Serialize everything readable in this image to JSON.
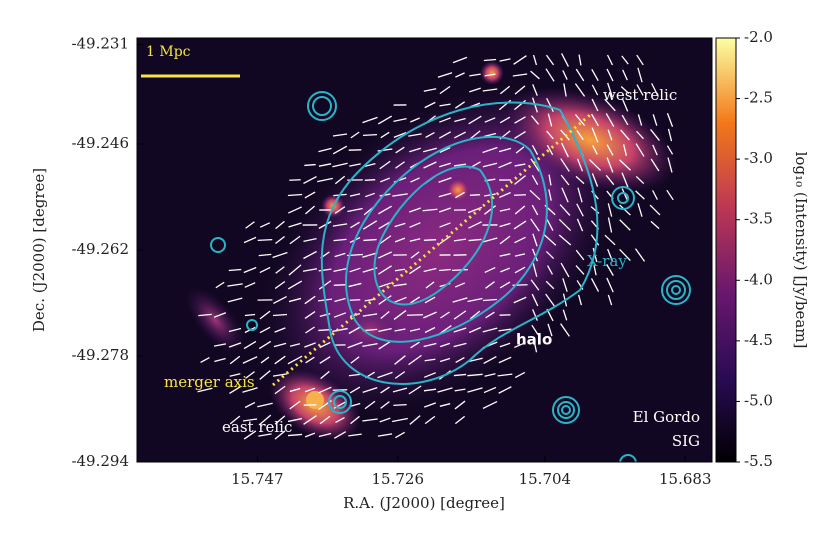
{
  "chart_data": {
    "type": "image",
    "xlabel": "R.A. (J2000) [degree]",
    "ylabel": "Dec. (J2000) [degree]",
    "xlim": [
      15.765,
      15.679
    ],
    "xticks": [
      15.747,
      15.726,
      15.704,
      15.683
    ],
    "ylim": [
      -49.294,
      -49.23
    ],
    "yticks": [
      -49.294,
      -49.278,
      -49.262,
      -49.246,
      -49.231
    ],
    "colorbar_label": "log₁₀ (Intensity) [Jy/beam]",
    "clim": [
      -5.5,
      -2.0
    ],
    "cticks": [
      {
        "value": -5.5,
        "label": "-5.5"
      },
      {
        "value": -5.0,
        "label": "-5.0"
      },
      -4.5,
      {
        "value": -4.0,
        "label": "-4.0"
      },
      -3.5,
      {
        "value": -3.0,
        "label": "-3.0"
      },
      -2.5,
      {
        "value": -2.0,
        "label": "-2.0"
      }
    ],
    "annotations": {
      "scale_bar": "1 Mpc",
      "west_relic": "west relic",
      "xray": "X-ray",
      "halo": "halo",
      "merger_axis": "merger axis",
      "east_relic": "east relic",
      "cluster": "El Gordo",
      "method": "SIG"
    }
  }
}
